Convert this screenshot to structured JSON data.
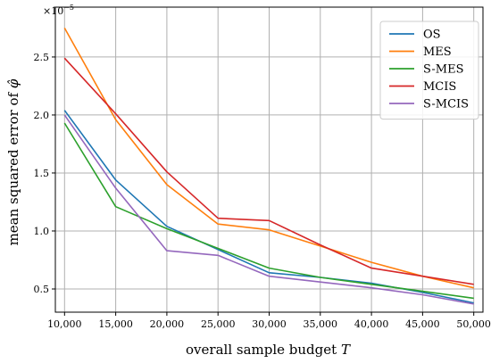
{
  "chart_data": {
    "type": "line",
    "x": [
      10000,
      15000,
      20000,
      25000,
      30000,
      35000,
      40000,
      45000,
      50000
    ],
    "x_tick_labels": [
      "10,000",
      "15,000",
      "20,000",
      "25,000",
      "30,000",
      "35,000",
      "40,000",
      "45,000",
      "50,000"
    ],
    "xlabel": "overall sample budget",
    "xlabel_var": "T",
    "ylabel": "mean squared error of",
    "ylabel_var": "φ̂",
    "y_tick_labels": [
      "0.5",
      "1.0",
      "1.5",
      "2.0",
      "2.5"
    ],
    "y_ticks": [
      0.5,
      1.0,
      1.5,
      2.0,
      2.5
    ],
    "y_offset_label": "×10",
    "y_offset_exp": "−5",
    "xlim": [
      9100,
      50900
    ],
    "ylim": [
      0.3,
      2.93
    ],
    "grid": true,
    "legend_position": "top-right",
    "series": [
      {
        "name": "OS",
        "color": "#1f77b4",
        "values": [
          2.04,
          1.44,
          1.04,
          0.84,
          0.64,
          0.6,
          0.55,
          0.47,
          0.38
        ]
      },
      {
        "name": "MES",
        "color": "#ff7f0e",
        "values": [
          2.75,
          1.96,
          1.4,
          1.06,
          1.01,
          0.87,
          0.73,
          0.61,
          0.51
        ]
      },
      {
        "name": "S-MES",
        "color": "#2ca02c",
        "values": [
          1.93,
          1.21,
          1.02,
          0.85,
          0.68,
          0.6,
          0.54,
          0.48,
          0.42
        ]
      },
      {
        "name": "MCIS",
        "color": "#d62728",
        "values": [
          2.49,
          2.01,
          1.51,
          1.11,
          1.09,
          0.88,
          0.68,
          0.61,
          0.54
        ]
      },
      {
        "name": "S-MCIS",
        "color": "#9467bd",
        "values": [
          2.0,
          1.37,
          0.83,
          0.79,
          0.61,
          0.56,
          0.51,
          0.45,
          0.37
        ]
      }
    ]
  }
}
